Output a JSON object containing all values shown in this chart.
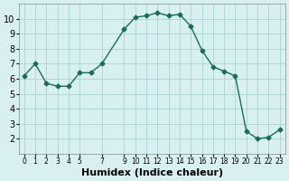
{
  "x": [
    0,
    1,
    2,
    3,
    4,
    5,
    6,
    7,
    9,
    10,
    11,
    12,
    13,
    14,
    15,
    16,
    17,
    18,
    19,
    20,
    21,
    22,
    23
  ],
  "y": [
    6.2,
    7.0,
    5.7,
    5.5,
    5.5,
    6.4,
    6.4,
    7.0,
    9.3,
    10.1,
    10.2,
    10.4,
    10.2,
    10.3,
    9.5,
    7.9,
    6.8,
    6.5,
    6.2,
    2.5,
    2.0,
    2.1,
    2.6
  ],
  "xlabel": "Humidex (Indice chaleur)",
  "ylim": [
    1,
    11
  ],
  "xlim": [
    -0.5,
    23.5
  ],
  "yticks": [
    2,
    3,
    4,
    5,
    6,
    7,
    8,
    9,
    10
  ],
  "xticks": [
    0,
    1,
    2,
    3,
    4,
    5,
    7,
    9,
    10,
    11,
    12,
    13,
    14,
    15,
    16,
    17,
    18,
    19,
    20,
    21,
    22,
    23
  ],
  "line_color": "#1a6b5a",
  "marker_color": "#1a6b5a",
  "bg_color": "#d8f0f0",
  "grid_color": "#aad4d4",
  "tick_label_fontsize": 7,
  "xlabel_fontsize": 8
}
